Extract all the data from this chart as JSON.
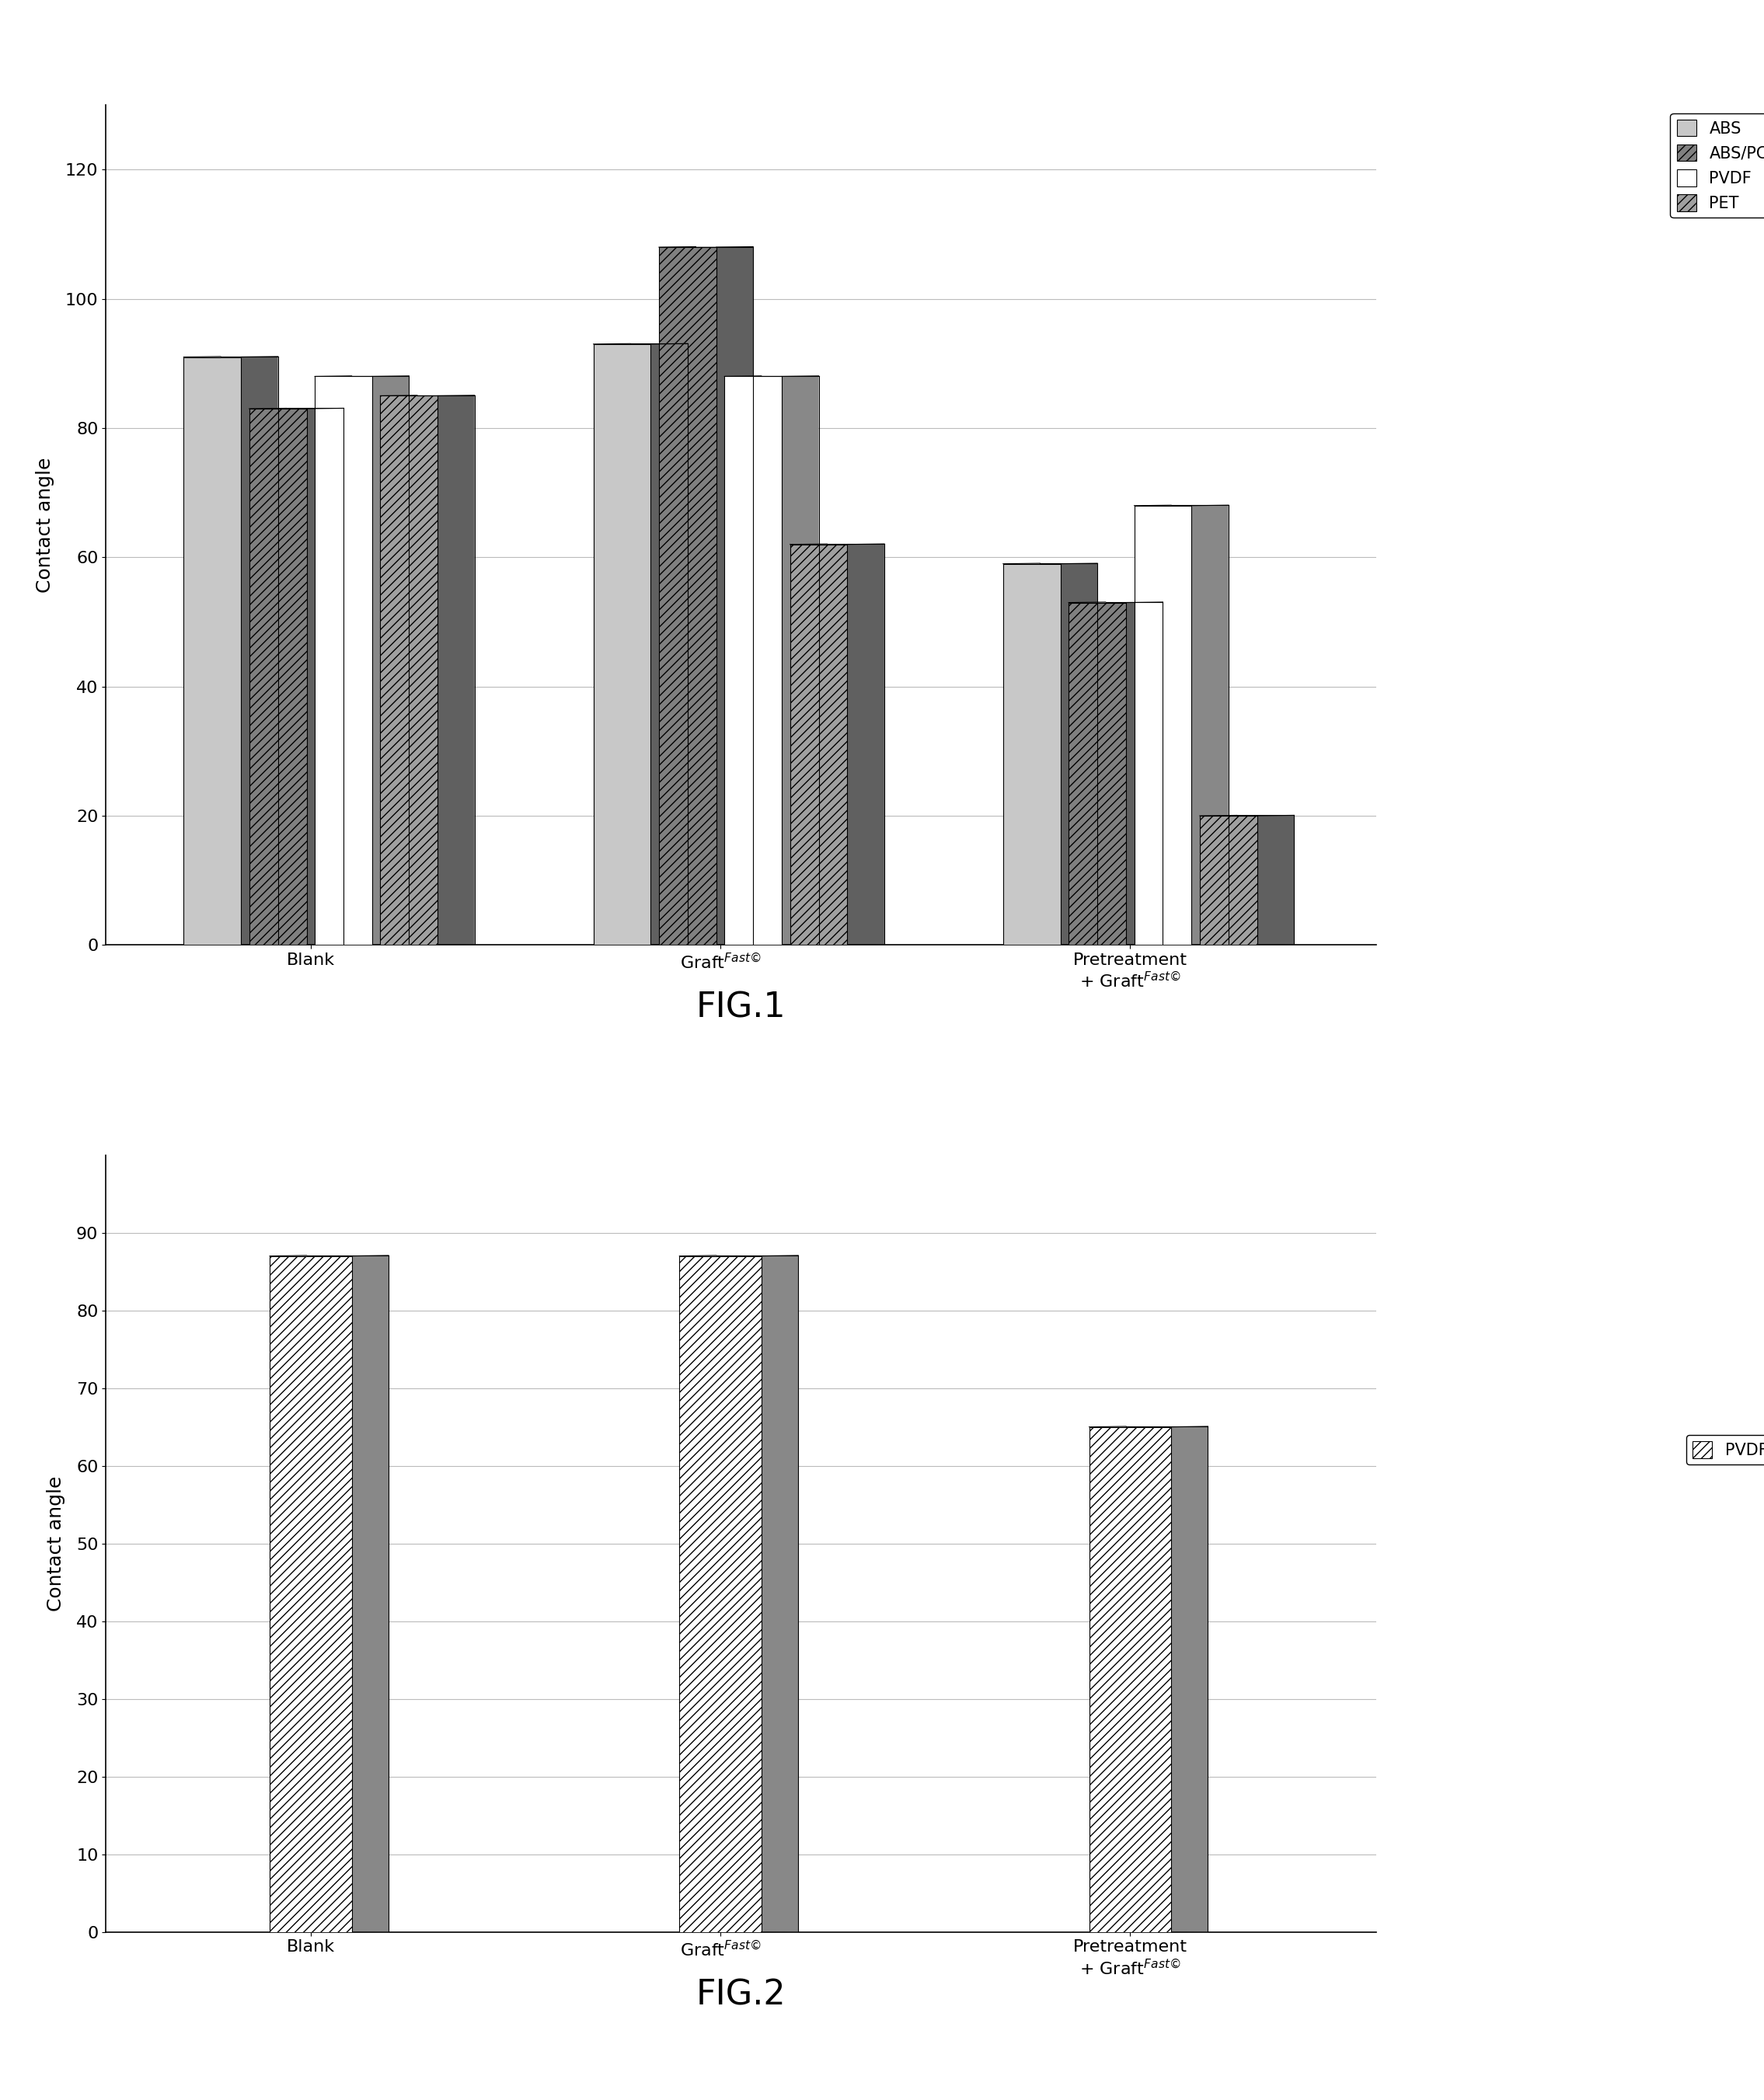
{
  "fig1": {
    "groups": [
      "Blank",
      "Graft$^{Fast\\copyright}$",
      "Pretreatment\n+ Graft$^{Fast\\copyright}$"
    ],
    "series": [
      "ABS",
      "ABS/PC",
      "PVDF",
      "PET"
    ],
    "values": [
      [
        91,
        83,
        88,
        85
      ],
      [
        93,
        108,
        88,
        62
      ],
      [
        59,
        53,
        68,
        20
      ]
    ],
    "colors": [
      "#c8c8c8",
      "#808080",
      "#ffffff",
      "#a0a0a0"
    ],
    "hatches": [
      "",
      "///",
      "",
      "///"
    ],
    "ylabel": "Contact angle",
    "ylim": [
      0,
      130
    ],
    "yticks": [
      0,
      20,
      40,
      60,
      80,
      100,
      120
    ],
    "title": "FIG.1"
  },
  "fig2": {
    "groups": [
      "Blank",
      "Graft$^{Fast\\copyright}$",
      "Pretreatment\n+ Graft$^{Fast\\copyright}$"
    ],
    "series": [
      "PVDF"
    ],
    "values": [
      [
        87
      ],
      [
        87
      ],
      [
        65
      ]
    ],
    "colors": [
      "#ffffff"
    ],
    "hatches": [
      "///"
    ],
    "ylabel": "Contact angle",
    "ylim": [
      0,
      100
    ],
    "yticks": [
      0,
      10,
      20,
      30,
      40,
      50,
      60,
      70,
      80,
      90
    ],
    "title": "FIG.2"
  },
  "background_color": "#ffffff",
  "bar_edge_color": "#000000",
  "grid_color": "#d0d0d0"
}
